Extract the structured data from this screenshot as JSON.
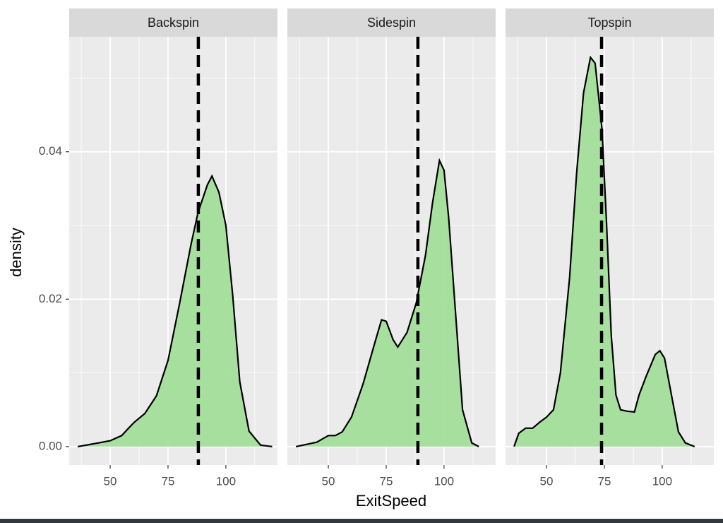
{
  "chart_data": {
    "type": "density",
    "x_label": "ExitSpeed",
    "y_label": "density",
    "xlim": [
      32.3,
      122.3
    ],
    "ylim": [
      -0.0025,
      0.0556
    ],
    "xticks": [
      50,
      75,
      100
    ],
    "yticks": [
      {
        "value": 0,
        "label": "0.00"
      },
      {
        "value": 0.02,
        "label": "0.02"
      },
      {
        "value": 0.04,
        "label": "0.04"
      }
    ],
    "xminor": [
      37.5,
      62.5,
      87.5,
      112.5
    ],
    "yminor": [
      0.01,
      0.03,
      0.05
    ],
    "grid": true,
    "color": "#a3de9b",
    "line_color": "#000000",
    "series": [
      {
        "name": "Backspin",
        "mean": 88.1,
        "x": [
          36,
          45,
          50,
          55,
          58,
          60.4,
          65,
          70,
          75,
          80,
          85,
          88,
          92,
          94,
          97,
          100,
          103,
          106,
          110,
          115,
          120
        ],
        "values": [
          0,
          0.0005,
          0.0008,
          0.0015,
          0.0025,
          0.0033,
          0.0045,
          0.0069,
          0.0117,
          0.0194,
          0.0275,
          0.0318,
          0.0355,
          0.0367,
          0.0345,
          0.03,
          0.0204,
          0.0088,
          0.0021,
          0.0002,
          0
        ]
      },
      {
        "name": "Sidespin",
        "mean": 88.7,
        "x": [
          36,
          45,
          50,
          53,
          56,
          60,
          65,
          70,
          73,
          75,
          78,
          80,
          84,
          88,
          92,
          95,
          98,
          100,
          102,
          105,
          108,
          112,
          115
        ],
        "values": [
          0,
          0.0006,
          0.0015,
          0.0015,
          0.002,
          0.004,
          0.0085,
          0.014,
          0.0172,
          0.017,
          0.0145,
          0.0135,
          0.0155,
          0.0195,
          0.026,
          0.033,
          0.0388,
          0.0375,
          0.031,
          0.018,
          0.005,
          0.0005,
          0
        ]
      },
      {
        "name": "Topspin",
        "mean": 73.8,
        "x": [
          36,
          38,
          41,
          44,
          47,
          50,
          53,
          56,
          60,
          63,
          66,
          69,
          71,
          74,
          76,
          78,
          80,
          82,
          85,
          88,
          90,
          93,
          97,
          99,
          101,
          104,
          107,
          110,
          114
        ],
        "values": [
          0,
          0.0018,
          0.0025,
          0.0025,
          0.0033,
          0.004,
          0.005,
          0.01,
          0.023,
          0.037,
          0.048,
          0.0528,
          0.052,
          0.043,
          0.03,
          0.015,
          0.007,
          0.005,
          0.0048,
          0.0047,
          0.007,
          0.0095,
          0.0125,
          0.013,
          0.012,
          0.007,
          0.002,
          0.0005,
          0
        ]
      }
    ]
  }
}
